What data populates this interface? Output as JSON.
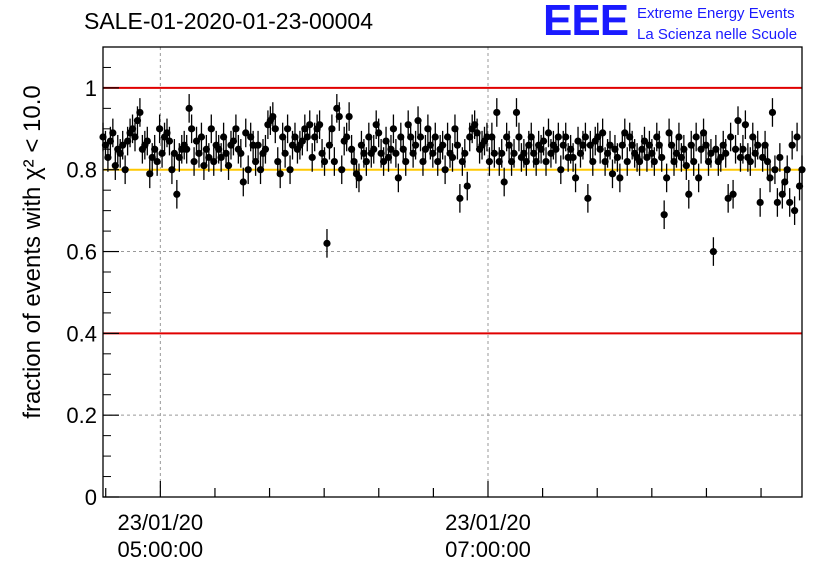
{
  "title": "SALE-01-2020-01-23-00004",
  "logo": {
    "mark": "EEE",
    "line1": "Extreme Energy Events",
    "line2": "La Scienza nelle Scuole"
  },
  "colors": {
    "threshold_lines": "#e00000",
    "reference_line": "#ffc800",
    "markers": "#000000",
    "logo": "#1a1aff",
    "grid": "#999999"
  },
  "chart_data": {
    "type": "scatter",
    "title": "SALE-01-2020-01-23-00004",
    "xlabel": "",
    "ylabel": "fraction of events with χ² < 10.0",
    "x_start": "2020-01-23 04:39",
    "x_end": "2020-01-23 08:55",
    "ylim": [
      0,
      1.1
    ],
    "y_ticks": [
      0,
      0.2,
      0.4,
      0.6,
      0.8,
      1
    ],
    "x_ticks": [
      {
        "time": "2020-01-23 05:00:00",
        "label_line1": "23/01/20",
        "label_line2": "05:00:00"
      },
      {
        "time": "2020-01-23 07:00:00",
        "label_line1": "23/01/20",
        "label_line2": "07:00:00"
      }
    ],
    "grid": true,
    "reference_lines": [
      {
        "y": 1.0,
        "color": "red"
      },
      {
        "y": 0.4,
        "color": "red"
      },
      {
        "y": 0.8,
        "color": "orange"
      }
    ],
    "series": [
      {
        "x_first": "2020-01-23 04:39",
        "x_last": "2020-01-23 08:55",
        "y_error": 0.035,
        "y": [
          0.88,
          0.86,
          0.83,
          0.87,
          0.89,
          0.81,
          0.85,
          0.84,
          0.86,
          0.8,
          0.87,
          0.89,
          0.9,
          0.88,
          0.92,
          0.94,
          0.85,
          0.86,
          0.87,
          0.79,
          0.83,
          0.85,
          0.82,
          0.9,
          0.84,
          0.88,
          0.89,
          0.87,
          0.8,
          0.84,
          0.74,
          0.83,
          0.85,
          0.86,
          0.85,
          0.95,
          0.9,
          0.82,
          0.87,
          0.84,
          0.88,
          0.81,
          0.85,
          0.83,
          0.9,
          0.82,
          0.86,
          0.85,
          0.83,
          0.88,
          0.84,
          0.81,
          0.86,
          0.87,
          0.9,
          0.85,
          0.84,
          0.77,
          0.89,
          0.8,
          0.88,
          0.86,
          0.82,
          0.86,
          0.8,
          0.84,
          0.85,
          0.91,
          0.92,
          0.93,
          0.9,
          0.82,
          0.79,
          0.88,
          0.84,
          0.9,
          0.8,
          0.86,
          0.88,
          0.85,
          0.86,
          0.87,
          0.9,
          0.88,
          0.91,
          0.83,
          0.88,
          0.9,
          0.91,
          0.84,
          0.82,
          0.62,
          0.86,
          0.9,
          0.82,
          0.95,
          0.93,
          0.8,
          0.87,
          0.88,
          0.93,
          0.85,
          0.82,
          0.79,
          0.78,
          0.86,
          0.84,
          0.82,
          0.88,
          0.84,
          0.85,
          0.91,
          0.89,
          0.84,
          0.82,
          0.87,
          0.83,
          0.85,
          0.9,
          0.84,
          0.78,
          0.88,
          0.85,
          0.82,
          0.91,
          0.88,
          0.84,
          0.86,
          0.92,
          0.88,
          0.82,
          0.85,
          0.9,
          0.86,
          0.84,
          0.88,
          0.82,
          0.85,
          0.86,
          0.8,
          0.88,
          0.84,
          0.83,
          0.9,
          0.86,
          0.73,
          0.82,
          0.84,
          0.76,
          0.88,
          0.9,
          0.91,
          0.89,
          0.85,
          0.86,
          0.87,
          0.88,
          0.82,
          0.88,
          0.84,
          0.94,
          0.82,
          0.84,
          0.77,
          0.88,
          0.86,
          0.82,
          0.84,
          0.94,
          0.88,
          0.83,
          0.84,
          0.82,
          0.86,
          0.88,
          0.84,
          0.82,
          0.86,
          0.85,
          0.87,
          0.82,
          0.89,
          0.84,
          0.86,
          0.85,
          0.88,
          0.8,
          0.86,
          0.88,
          0.83,
          0.85,
          0.83,
          0.78,
          0.87,
          0.84,
          0.86,
          0.88,
          0.73,
          0.86,
          0.82,
          0.87,
          0.88,
          0.85,
          0.89,
          0.82,
          0.84,
          0.86,
          0.79,
          0.85,
          0.83,
          0.78,
          0.86,
          0.89,
          0.82,
          0.88,
          0.86,
          0.84,
          0.83,
          0.82,
          0.85,
          0.87,
          0.83,
          0.86,
          0.84,
          0.82,
          0.88,
          0.86,
          0.83,
          0.69,
          0.78,
          0.89,
          0.86,
          0.82,
          0.84,
          0.88,
          0.83,
          0.85,
          0.81,
          0.74,
          0.86,
          0.82,
          0.88,
          0.78,
          0.85,
          0.89,
          0.86,
          0.82,
          0.84,
          0.6,
          0.85,
          0.82,
          0.83,
          0.86,
          0.84,
          0.73,
          0.88,
          0.74,
          0.85,
          0.92,
          0.83,
          0.85,
          0.91,
          0.83,
          0.82,
          0.88,
          0.84,
          0.86,
          0.72,
          0.83,
          0.86,
          0.82,
          0.78,
          0.94,
          0.8,
          0.72,
          0.83,
          0.74,
          0.77,
          0.8,
          0.72,
          0.86,
          0.7,
          0.88,
          0.76,
          0.8
        ]
      }
    ]
  }
}
